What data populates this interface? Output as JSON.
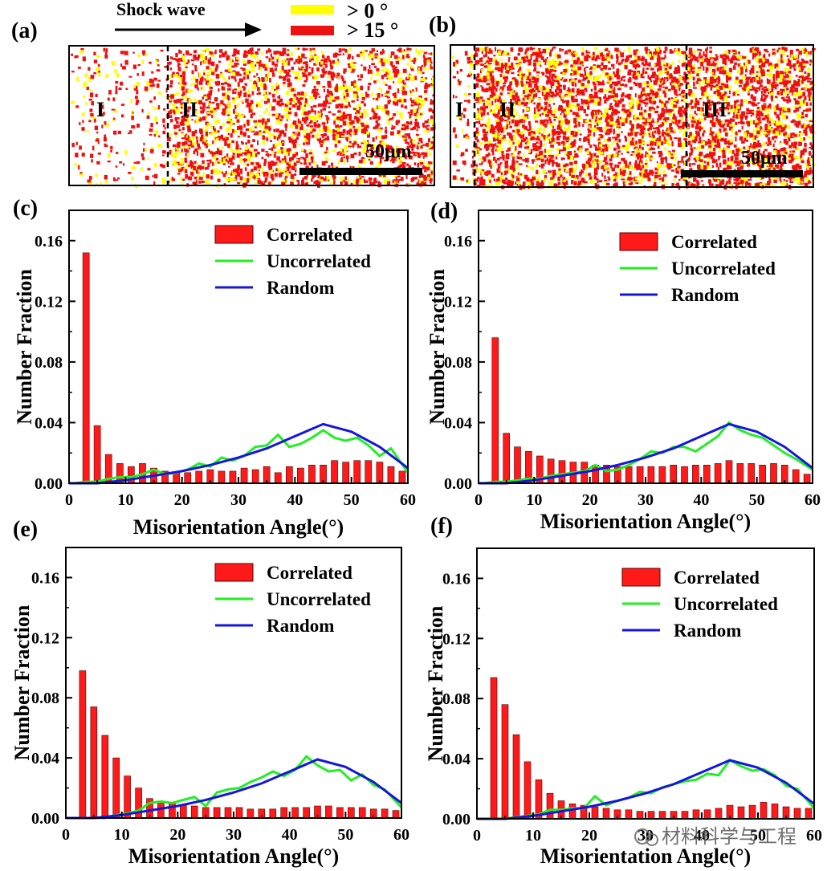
{
  "colors": {
    "correlated": "#ff1a1a",
    "uncorrelated": "#22ee22",
    "random": "#1515dd",
    "low_angle": "#ffff00",
    "high_angle": "#ee1111",
    "axis": "#000000"
  },
  "header": {
    "shock_wave": "Shock wave",
    "legend_low": "> 0 °",
    "legend_high": "> 15 °"
  },
  "maps": [
    {
      "label": "(a)",
      "scale_bar": "50μm",
      "regions": [
        "I",
        "II"
      ]
    },
    {
      "label": "(b)",
      "scale_bar": "50μm",
      "regions": [
        "I",
        "II",
        "III"
      ]
    }
  ],
  "chart_data": [
    {
      "panel": "(c)",
      "type": "bar",
      "xlabel": "Misorientation Angle(°)",
      "ylabel": "Number Fraction",
      "xlim": [
        0,
        60
      ],
      "ylim": [
        0,
        0.18
      ],
      "xticks": [
        "0",
        "10",
        "20",
        "30",
        "40",
        "50",
        "60"
      ],
      "yticks": [
        "0.00",
        "0.04",
        "0.08",
        "0.12",
        "0.16"
      ],
      "legend_position": "top-right",
      "series": [
        {
          "name": "Correlated",
          "kind": "bar",
          "x": [
            3,
            5,
            7,
            9,
            11,
            13,
            15,
            17,
            19,
            21,
            23,
            25,
            27,
            29,
            31,
            33,
            35,
            37,
            39,
            41,
            43,
            45,
            47,
            49,
            51,
            53,
            55,
            57,
            59
          ],
          "values": [
            0.152,
            0.038,
            0.019,
            0.013,
            0.011,
            0.013,
            0.01,
            0.008,
            0.007,
            0.007,
            0.008,
            0.009,
            0.008,
            0.008,
            0.01,
            0.009,
            0.011,
            0.007,
            0.011,
            0.01,
            0.012,
            0.012,
            0.015,
            0.014,
            0.015,
            0.015,
            0.014,
            0.011,
            0.008
          ]
        },
        {
          "name": "Uncorrelated",
          "kind": "line",
          "x": [
            1,
            3,
            5,
            7,
            9,
            11,
            13,
            15,
            17,
            19,
            21,
            23,
            25,
            27,
            29,
            31,
            33,
            35,
            37,
            39,
            41,
            43,
            45,
            47,
            49,
            51,
            53,
            55,
            57,
            60
          ],
          "values": [
            0.0,
            0.001,
            0.001,
            0.003,
            0.004,
            0.004,
            0.006,
            0.009,
            0.006,
            0.007,
            0.009,
            0.013,
            0.011,
            0.017,
            0.015,
            0.018,
            0.024,
            0.025,
            0.032,
            0.024,
            0.026,
            0.03,
            0.035,
            0.03,
            0.028,
            0.03,
            0.025,
            0.018,
            0.023,
            0.007
          ]
        },
        {
          "name": "Random",
          "kind": "line",
          "x": [
            0,
            5,
            10,
            15,
            20,
            25,
            30,
            35,
            40,
            45,
            50,
            55,
            60
          ],
          "values": [
            0.0,
            0.0,
            0.002,
            0.005,
            0.008,
            0.012,
            0.017,
            0.023,
            0.031,
            0.039,
            0.034,
            0.024,
            0.01
          ]
        }
      ]
    },
    {
      "panel": "(d)",
      "type": "bar",
      "xlabel": "Misorientation Angle(°)",
      "ylabel": "Number Fraction",
      "xlim": [
        0,
        60
      ],
      "ylim": [
        0,
        0.18
      ],
      "xticks": [
        "0",
        "10",
        "20",
        "30",
        "40",
        "50",
        "60"
      ],
      "yticks": [
        "0.00",
        "0.04",
        "0.08",
        "0.12",
        "0.16"
      ],
      "legend_position": "top-right",
      "series": [
        {
          "name": "Correlated",
          "kind": "bar",
          "x": [
            3,
            5,
            7,
            9,
            11,
            13,
            15,
            17,
            19,
            21,
            23,
            25,
            27,
            29,
            31,
            33,
            35,
            37,
            39,
            41,
            43,
            45,
            47,
            49,
            51,
            53,
            55,
            57,
            59
          ],
          "values": [
            0.096,
            0.033,
            0.024,
            0.021,
            0.018,
            0.016,
            0.015,
            0.014,
            0.014,
            0.012,
            0.012,
            0.011,
            0.011,
            0.011,
            0.011,
            0.011,
            0.012,
            0.011,
            0.012,
            0.012,
            0.013,
            0.015,
            0.013,
            0.013,
            0.012,
            0.013,
            0.012,
            0.009,
            0.006
          ]
        },
        {
          "name": "Uncorrelated",
          "kind": "line",
          "x": [
            1,
            3,
            5,
            7,
            9,
            11,
            13,
            15,
            17,
            19,
            21,
            23,
            25,
            27,
            29,
            31,
            33,
            35,
            37,
            39,
            41,
            43,
            45,
            47,
            49,
            51,
            53,
            55,
            57,
            60
          ],
          "values": [
            0.0,
            0.001,
            0.001,
            0.002,
            0.003,
            0.003,
            0.005,
            0.006,
            0.007,
            0.008,
            0.012,
            0.008,
            0.009,
            0.012,
            0.016,
            0.021,
            0.02,
            0.024,
            0.024,
            0.021,
            0.026,
            0.031,
            0.04,
            0.035,
            0.032,
            0.03,
            0.025,
            0.02,
            0.016,
            0.009
          ]
        },
        {
          "name": "Random",
          "kind": "line",
          "x": [
            0,
            5,
            10,
            15,
            20,
            25,
            30,
            35,
            40,
            45,
            50,
            55,
            60
          ],
          "values": [
            0.0,
            0.0,
            0.002,
            0.005,
            0.008,
            0.012,
            0.017,
            0.023,
            0.031,
            0.039,
            0.034,
            0.024,
            0.01
          ]
        }
      ]
    },
    {
      "panel": "(e)",
      "type": "bar",
      "xlabel": "Misorientation Angle(°)",
      "ylabel": "Number Fraction",
      "xlim": [
        0,
        60
      ],
      "ylim": [
        0,
        0.18
      ],
      "xticks": [
        "0",
        "10",
        "20",
        "30",
        "40",
        "50",
        "60"
      ],
      "yticks": [
        "0.00",
        "0.04",
        "0.08",
        "0.12",
        "0.16"
      ],
      "legend_position": "top-right",
      "series": [
        {
          "name": "Correlated",
          "kind": "bar",
          "x": [
            3,
            5,
            7,
            9,
            11,
            13,
            15,
            17,
            19,
            21,
            23,
            25,
            27,
            29,
            31,
            33,
            35,
            37,
            39,
            41,
            43,
            45,
            47,
            49,
            51,
            53,
            55,
            57,
            59
          ],
          "values": [
            0.098,
            0.074,
            0.055,
            0.04,
            0.028,
            0.02,
            0.013,
            0.011,
            0.01,
            0.009,
            0.008,
            0.007,
            0.007,
            0.007,
            0.007,
            0.006,
            0.006,
            0.006,
            0.007,
            0.007,
            0.007,
            0.008,
            0.008,
            0.007,
            0.007,
            0.007,
            0.006,
            0.006,
            0.005
          ]
        },
        {
          "name": "Uncorrelated",
          "kind": "line",
          "x": [
            1,
            3,
            5,
            7,
            9,
            11,
            13,
            15,
            17,
            19,
            21,
            23,
            25,
            27,
            29,
            31,
            33,
            35,
            37,
            39,
            41,
            43,
            45,
            47,
            49,
            51,
            53,
            55,
            57,
            60
          ],
          "values": [
            0.0,
            0.0,
            0.0,
            0.0,
            0.002,
            0.003,
            0.005,
            0.01,
            0.011,
            0.01,
            0.012,
            0.014,
            0.008,
            0.017,
            0.019,
            0.02,
            0.024,
            0.027,
            0.031,
            0.028,
            0.032,
            0.041,
            0.035,
            0.031,
            0.032,
            0.025,
            0.029,
            0.022,
            0.019,
            0.007
          ]
        },
        {
          "name": "Random",
          "kind": "line",
          "x": [
            0,
            5,
            10,
            15,
            20,
            25,
            30,
            35,
            40,
            45,
            50,
            55,
            60
          ],
          "values": [
            0.0,
            0.0,
            0.002,
            0.005,
            0.008,
            0.012,
            0.017,
            0.023,
            0.031,
            0.039,
            0.034,
            0.024,
            0.01
          ]
        }
      ]
    },
    {
      "panel": "(f)",
      "type": "bar",
      "xlabel": "Misorientation Angle(°)",
      "ylabel": "Number Fraction",
      "xlim": [
        0,
        60
      ],
      "ylim": [
        0,
        0.18
      ],
      "xticks": [
        "0",
        "10",
        "20",
        "30",
        "40",
        "50",
        "60"
      ],
      "yticks": [
        "0.00",
        "0.04",
        "0.08",
        "0.12",
        "0.16"
      ],
      "legend_position": "top-right",
      "series": [
        {
          "name": "Correlated",
          "kind": "bar",
          "x": [
            3,
            5,
            7,
            9,
            11,
            13,
            15,
            17,
            19,
            21,
            23,
            25,
            27,
            29,
            31,
            33,
            35,
            37,
            39,
            41,
            43,
            45,
            47,
            49,
            51,
            53,
            55,
            57,
            59
          ],
          "values": [
            0.094,
            0.076,
            0.056,
            0.038,
            0.026,
            0.017,
            0.012,
            0.01,
            0.009,
            0.008,
            0.007,
            0.006,
            0.006,
            0.005,
            0.005,
            0.005,
            0.005,
            0.005,
            0.006,
            0.006,
            0.007,
            0.009,
            0.008,
            0.009,
            0.011,
            0.01,
            0.008,
            0.007,
            0.007
          ]
        },
        {
          "name": "Uncorrelated",
          "kind": "line",
          "x": [
            1,
            3,
            5,
            7,
            9,
            11,
            13,
            15,
            17,
            19,
            21,
            23,
            25,
            27,
            29,
            31,
            33,
            35,
            37,
            39,
            41,
            43,
            45,
            47,
            49,
            51,
            53,
            55,
            57,
            60
          ],
          "values": [
            0.0,
            0.0,
            0.0,
            0.001,
            0.002,
            0.003,
            0.006,
            0.006,
            0.007,
            0.007,
            0.015,
            0.009,
            0.012,
            0.014,
            0.018,
            0.017,
            0.021,
            0.023,
            0.025,
            0.026,
            0.03,
            0.029,
            0.039,
            0.035,
            0.032,
            0.033,
            0.029,
            0.022,
            0.02,
            0.007
          ]
        },
        {
          "name": "Random",
          "kind": "line",
          "x": [
            0,
            5,
            10,
            15,
            20,
            25,
            30,
            35,
            40,
            45,
            50,
            55,
            60
          ],
          "values": [
            0.0,
            0.0,
            0.002,
            0.005,
            0.008,
            0.012,
            0.017,
            0.023,
            0.031,
            0.039,
            0.034,
            0.024,
            0.01
          ]
        }
      ]
    }
  ],
  "watermark": "材料科学与工程"
}
